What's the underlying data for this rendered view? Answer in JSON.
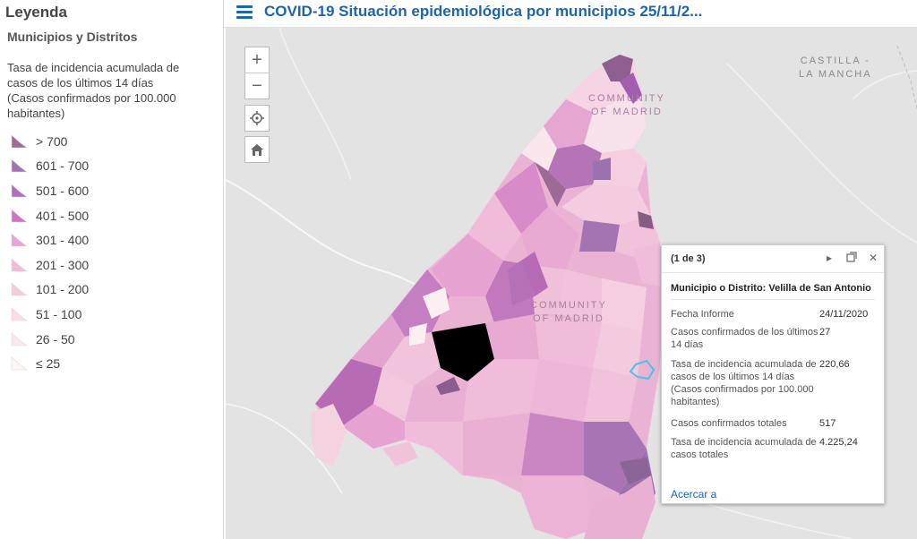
{
  "legend": {
    "title": "Leyenda",
    "layer": "Municipios y Distritos",
    "description": "Tasa de incidencia acumulada de casos de los últimos 14 días (Casos confirmados por 100.000 habitantes)",
    "items": [
      {
        "label": "> 700",
        "color": "#9c6e92"
      },
      {
        "label": "601 - 700",
        "color": "#a274b0"
      },
      {
        "label": "501 - 600",
        "color": "#b06ebd"
      },
      {
        "label": "401 - 500",
        "color": "#cf73c6"
      },
      {
        "label": "301 - 400",
        "color": "#e7a3d6"
      },
      {
        "label": "201 - 300",
        "color": "#f3b9d6"
      },
      {
        "label": "101 - 200",
        "color": "#f6cbdc"
      },
      {
        "label": "51 - 100",
        "color": "#f9dde2"
      },
      {
        "label": "26 - 50",
        "color": "#fbe9ea"
      },
      {
        "label": "≤ 25",
        "color": "#fdf5f3"
      }
    ]
  },
  "header": {
    "title": "COVID-19 Situación epidemiológica por municipios 25/11/2..."
  },
  "map": {
    "region_labels": {
      "castilla_line1": "CASTILLA -",
      "castilla_line2": "LA MANCHA",
      "community_top_line1": "COMMUNITY",
      "community_top_line2": "OF MADRID",
      "community_center_line1": "COMMUNITY",
      "community_center_line2": "OF MADRID"
    },
    "controls": {
      "zoom_in": "+",
      "zoom_out": "−",
      "locate": "locate-icon",
      "home": "home-icon"
    }
  },
  "popup": {
    "pager": "(1 de 3)",
    "title": "Municipio o Distrito: Velilla de San Antonio",
    "fields": [
      {
        "key": "Fecha Informe",
        "value": "24/11/2020"
      },
      {
        "key": "Casos confirmados de los últimos 14 días",
        "value": "27"
      },
      {
        "key": "Tasa de incidencia acumulada de casos de los últimos 14 días (Casos confirmados por 100.000 habitantes)",
        "value": "220,66"
      },
      {
        "key": "Casos confirmados totales",
        "value": "517"
      },
      {
        "key": "Tasa de incidencia acumulada de casos totales",
        "value": "4.225,24"
      }
    ],
    "zoom_link": "Acercar a"
  }
}
